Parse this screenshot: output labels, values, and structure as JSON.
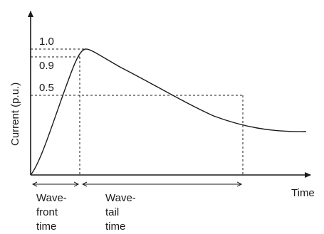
{
  "diagram": {
    "y_axis_label": "Current (p.u.)",
    "x_axis_label": "Time",
    "ticks": [
      "1.0",
      "0.9",
      "0.5"
    ],
    "wavefront_label": [
      "Wave-",
      "front",
      "time"
    ],
    "wavetail_label": [
      "Wave-",
      "tail",
      "time"
    ],
    "colors": {
      "ink": "#1a1a1a",
      "background": "#ffffff"
    }
  },
  "chart_data": {
    "type": "line",
    "x": [
      0,
      0.25,
      0.5,
      0.75,
      1,
      1.25,
      1.5,
      2,
      2.5,
      3,
      3.5,
      4,
      4.5,
      5,
      5.5,
      6,
      6.5,
      7
    ],
    "series": [
      {
        "values": [
          0,
          0.22,
          0.45,
          0.67,
          0.85,
          0.97,
          1.0,
          0.92,
          0.8,
          0.69,
          0.6,
          0.52,
          0.46,
          0.41,
          0.37,
          0.34,
          0.32,
          0.31
        ]
      }
    ],
    "yticks": [
      "0.5",
      "0.9",
      "1.0"
    ],
    "xlabel": "Time",
    "ylabel": "Current (p.u.)"
  }
}
